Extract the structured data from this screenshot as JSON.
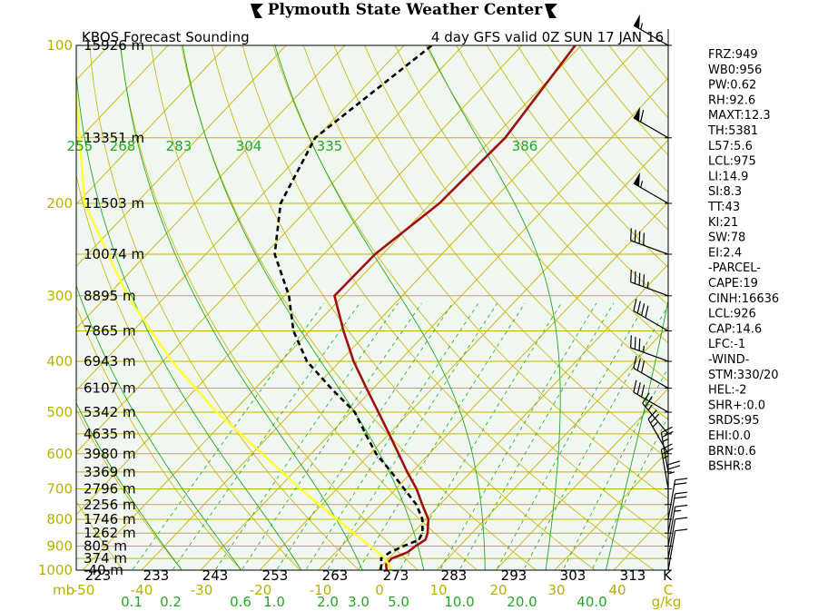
{
  "header": {
    "title": "Plymouth State Weather Center",
    "left_subtitle": "KBOS Forecast Sounding",
    "right_subtitle": "4 day GFS valid 0Z SUN 17 JAN 16"
  },
  "chart_data": {
    "type": "skew-t log-p sounding",
    "pressure_levels_mb": [
      100,
      200,
      300,
      400,
      500,
      600,
      700,
      800,
      900,
      1000
    ],
    "height_labels": [
      {
        "p": 100,
        "text": "15926 m"
      },
      {
        "p": 150,
        "text": "13351 m"
      },
      {
        "p": 200,
        "text": "11503 m"
      },
      {
        "p": 250,
        "text": "10074 m"
      },
      {
        "p": 300,
        "text": "8895 m"
      },
      {
        "p": 350,
        "text": "7865 m"
      },
      {
        "p": 400,
        "text": "6943 m"
      },
      {
        "p": 450,
        "text": "6107 m"
      },
      {
        "p": 500,
        "text": "5342 m"
      },
      {
        "p": 550,
        "text": "4635 m"
      },
      {
        "p": 600,
        "text": "3980 m"
      },
      {
        "p": 650,
        "text": "3369 m"
      },
      {
        "p": 700,
        "text": "2796 m"
      },
      {
        "p": 750,
        "text": "2256 m"
      },
      {
        "p": 800,
        "text": "1746 m"
      },
      {
        "p": 850,
        "text": "1262 m"
      },
      {
        "p": 900,
        "text": "805 m"
      },
      {
        "p": 950,
        "text": "374 m"
      },
      {
        "p": 1000,
        "text": "-40 m"
      }
    ],
    "x_axis_unit": "mb",
    "temperature_ticks_c": [
      "-50",
      "-40",
      "-30",
      "-20",
      "-10",
      "0",
      "10",
      "20",
      "30",
      "40",
      "C"
    ],
    "kelvin_labels": [
      "223",
      "233",
      "243",
      "253",
      "263",
      "273",
      "283",
      "293",
      "303",
      "313",
      "K"
    ],
    "mixing_ratio_labels": [
      "0.1",
      "0.2",
      "0.6",
      "1.0",
      "2.0",
      "3.0",
      "5.0",
      "10.0",
      "20.0",
      "40.0",
      "g/kg"
    ],
    "theta_e_labels": [
      "255",
      "268",
      "283",
      "304",
      "335",
      "386"
    ],
    "series": [
      {
        "name": "temperature",
        "color": "#a01010",
        "points": [
          {
            "p": 1000,
            "t": 1.5
          },
          {
            "p": 975,
            "t": 0.5
          },
          {
            "p": 950,
            "t": 0.5
          },
          {
            "p": 925,
            "t": 2.2
          },
          {
            "p": 900,
            "t": 2.5
          },
          {
            "p": 875,
            "t": 3.2
          },
          {
            "p": 850,
            "t": 2.5
          },
          {
            "p": 800,
            "t": 0.4
          },
          {
            "p": 750,
            "t": -3.0
          },
          {
            "p": 700,
            "t": -6.5
          },
          {
            "p": 650,
            "t": -10.8
          },
          {
            "p": 600,
            "t": -15.2
          },
          {
            "p": 550,
            "t": -20.0
          },
          {
            "p": 500,
            "t": -25.3
          },
          {
            "p": 450,
            "t": -31.2
          },
          {
            "p": 400,
            "t": -37.7
          },
          {
            "p": 350,
            "t": -44.3
          },
          {
            "p": 300,
            "t": -51.5
          },
          {
            "p": 250,
            "t": -51.3
          },
          {
            "p": 200,
            "t": -48.6
          },
          {
            "p": 150,
            "t": -48.0
          },
          {
            "p": 100,
            "t": -51.0
          }
        ]
      },
      {
        "name": "dewpoint",
        "color": "#000000",
        "points": [
          {
            "p": 1000,
            "t": 0.5
          },
          {
            "p": 975,
            "t": -0.3
          },
          {
            "p": 950,
            "t": -1.3
          },
          {
            "p": 925,
            "t": -0.8
          },
          {
            "p": 900,
            "t": 0.5
          },
          {
            "p": 875,
            "t": 2.1
          },
          {
            "p": 850,
            "t": 1.6
          },
          {
            "p": 800,
            "t": -0.6
          },
          {
            "p": 750,
            "t": -4.0
          },
          {
            "p": 700,
            "t": -8.6
          },
          {
            "p": 650,
            "t": -13.5
          },
          {
            "p": 600,
            "t": -19.0
          },
          {
            "p": 550,
            "t": -24.0
          },
          {
            "p": 500,
            "t": -29.3
          },
          {
            "p": 450,
            "t": -37.2
          },
          {
            "p": 400,
            "t": -45.6
          },
          {
            "p": 350,
            "t": -52.8
          },
          {
            "p": 300,
            "t": -59.2
          },
          {
            "p": 250,
            "t": -68.3
          },
          {
            "p": 200,
            "t": -75.5
          },
          {
            "p": 150,
            "t": -80.2
          },
          {
            "p": 100,
            "t": -75.3
          }
        ]
      },
      {
        "name": "parcel",
        "color": "#ffff33",
        "points": [
          {
            "p": 1000,
            "t": 2.4
          },
          {
            "p": 950,
            "t": -0.6
          },
          {
            "p": 900,
            "t": -5.1
          },
          {
            "p": 850,
            "t": -10.0
          },
          {
            "p": 800,
            "t": -15.1
          },
          {
            "p": 700,
            "t": -26.2
          },
          {
            "p": 600,
            "t": -38.3
          },
          {
            "p": 500,
            "t": -52.7
          },
          {
            "p": 400,
            "t": -68.5
          },
          {
            "p": 300,
            "t": -86.6
          },
          {
            "p": 200,
            "t": -108.7
          },
          {
            "p": 120,
            "t": -129.0
          }
        ]
      }
    ],
    "winds": [
      {
        "p": 100,
        "dir": 300,
        "spd": 55
      },
      {
        "p": 150,
        "dir": 300,
        "spd": 60
      },
      {
        "p": 200,
        "dir": 300,
        "spd": 55
      },
      {
        "p": 250,
        "dir": 290,
        "spd": 40
      },
      {
        "p": 300,
        "dir": 290,
        "spd": 45
      },
      {
        "p": 350,
        "dir": 300,
        "spd": 40
      },
      {
        "p": 400,
        "dir": 290,
        "spd": 35
      },
      {
        "p": 450,
        "dir": 300,
        "spd": 30
      },
      {
        "p": 500,
        "dir": 300,
        "spd": 30
      },
      {
        "p": 550,
        "dir": 320,
        "spd": 25
      },
      {
        "p": 600,
        "dir": 330,
        "spd": 25
      },
      {
        "p": 650,
        "dir": 350,
        "spd": 25
      },
      {
        "p": 700,
        "dir": 350,
        "spd": 25
      },
      {
        "p": 750,
        "dir": 0,
        "spd": 25
      },
      {
        "p": 800,
        "dir": 10,
        "spd": 20
      },
      {
        "p": 850,
        "dir": 10,
        "spd": 20
      },
      {
        "p": 900,
        "dir": 10,
        "spd": 15
      },
      {
        "p": 950,
        "dir": 10,
        "spd": 10
      },
      {
        "p": 1000,
        "dir": 10,
        "spd": 10
      }
    ],
    "indices": [
      "FRZ:949",
      "WB0:956",
      "PW:0.62",
      "RH:92.6",
      "MAXT:12.3",
      "TH:5381",
      "L57:5.6",
      "LCL:975",
      "LI:14.9",
      "SI:8.3",
      "TT:43",
      "KI:21",
      "SW:78",
      "EI:2.4",
      "-PARCEL-",
      "CAPE:19",
      "CINH:16636",
      "LCL:926",
      "CAP:14.6",
      "LFC:-1",
      "-WIND-",
      "STM:330/20",
      "HEL:-2",
      "SHR+:0.0",
      "SRDS:95",
      "EHI:0.0",
      "BRN:0.6",
      "BSHR:8"
    ],
    "colors": {
      "isobar": "#c8b400",
      "isotherm": "#c8b400",
      "dry_adiabat": "#c8b400",
      "moist_adiabat": "#22aa22",
      "mixing_ratio": "#22aa22",
      "axis_label_olive": "#b8b000",
      "axis_label_green": "#22aa22",
      "background": "#f0f7f0"
    }
  }
}
